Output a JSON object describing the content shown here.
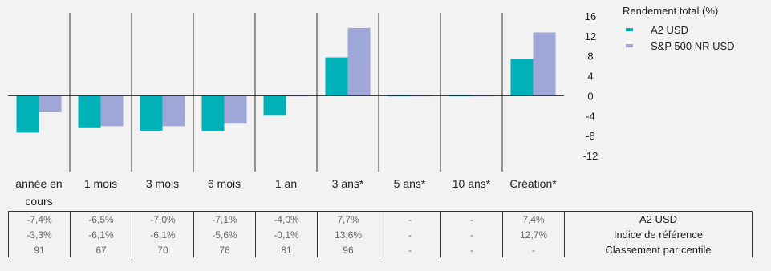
{
  "chart_data": {
    "type": "bar",
    "categories": [
      "année en cours",
      "1 mois",
      "3 mois",
      "6 mois",
      "1 an",
      "3 ans*",
      "5 ans*",
      "10 ans*",
      "Création*"
    ],
    "series": [
      {
        "name": "A2 USD",
        "values": [
          -7.4,
          -6.5,
          -7.0,
          -7.1,
          -4.0,
          7.7,
          0,
          0,
          7.4
        ]
      },
      {
        "name": "S&P 500 NR USD",
        "values": [
          -3.3,
          -6.1,
          -6.1,
          -5.6,
          -0.1,
          13.6,
          0,
          0,
          12.7
        ]
      }
    ],
    "legend_title": "Rendement total (%)",
    "ylim": [
      -12,
      16
    ],
    "yticks": [
      "16",
      "12",
      "8",
      "4",
      "0",
      "-4",
      "-8",
      "-12"
    ],
    "ytick_values": [
      16,
      12,
      8,
      4,
      0,
      -4,
      -8,
      -12
    ],
    "legend_position": "top-right",
    "colors": {
      "a2": "#00b2b8",
      "benchmark": "#9fa6d8",
      "background": "#f2f2f2"
    }
  },
  "table": {
    "rows": [
      {
        "label": "A2 USD",
        "cells": [
          "-7,4%",
          "-6,5%",
          "-7,0%",
          "-7,1%",
          "-4,0%",
          "7,7%",
          "-",
          "-",
          "7,4%"
        ]
      },
      {
        "label": "Indice de référence",
        "cells": [
          "-3,3%",
          "-6,1%",
          "-6,1%",
          "-5,6%",
          "-0,1%",
          "13,6%",
          "-",
          "-",
          "12,7%"
        ]
      },
      {
        "label": "Classement par centile",
        "cells": [
          "91",
          "67",
          "70",
          "76",
          "81",
          "96",
          "-",
          "-",
          "-"
        ]
      }
    ]
  }
}
